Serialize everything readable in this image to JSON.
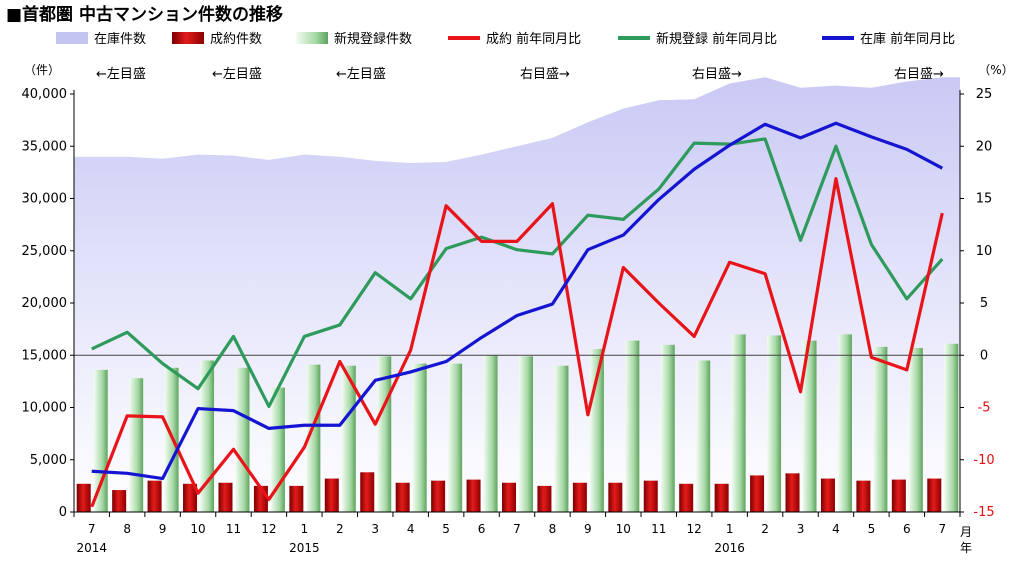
{
  "chart_data": {
    "type": "bar-line-area",
    "title": "■首都圏 中古マンション件数の推移",
    "left_axis_unit": "（件）",
    "right_axis_unit": "（%）",
    "left_ylim": [
      0,
      40000
    ],
    "left_ticks": [
      "0",
      "5,000",
      "10,000",
      "15,000",
      "20,000",
      "25,000",
      "30,000",
      "35,000",
      "40,000"
    ],
    "right_ylim": [
      -15,
      25
    ],
    "right_ticks": [
      "-15",
      "-10",
      "-5",
      "0",
      "5",
      "10",
      "15",
      "20",
      "25"
    ],
    "months": [
      "7",
      "8",
      "9",
      "10",
      "11",
      "12",
      "1",
      "2",
      "3",
      "4",
      "5",
      "6",
      "7",
      "8",
      "9",
      "10",
      "11",
      "12",
      "1",
      "2",
      "3",
      "4",
      "5",
      "6",
      "7"
    ],
    "year_labels": [
      {
        "label": "2014",
        "index": 0
      },
      {
        "label": "2015",
        "index": 6
      },
      {
        "label": "2016",
        "index": 18
      }
    ],
    "x_unit_month": "月",
    "x_unit_year": "年",
    "legend": [
      {
        "name": "在庫件数",
        "sub": "←左目盛",
        "type": "area",
        "color": "#c4c4f2"
      },
      {
        "name": "成約件数",
        "sub": "←左目盛",
        "type": "bar",
        "color": "#c00000"
      },
      {
        "name": "新規登録件数",
        "sub": "←左目盛",
        "type": "bar",
        "color": "#8fcf8f"
      },
      {
        "name": "成約 前年同月比",
        "sub": "右目盛→",
        "type": "line",
        "color": "#e8141a"
      },
      {
        "name": "新規登録 前年同月比",
        "sub": "右目盛→",
        "type": "line",
        "color": "#2e9a5c"
      },
      {
        "name": "在庫 前年同月比",
        "sub": "右目盛→",
        "type": "line",
        "color": "#1414d2"
      }
    ],
    "series": [
      {
        "name": "在庫件数",
        "axis": "left",
        "values": [
          34000,
          34000,
          33800,
          34200,
          34100,
          33700,
          34200,
          34000,
          33600,
          33400,
          33500,
          34200,
          35000,
          35800,
          37300,
          38600,
          39400,
          39500,
          41000,
          41600,
          40600,
          40800,
          40600,
          41200,
          41600
        ]
      },
      {
        "name": "成約件数",
        "axis": "left",
        "values": [
          2700,
          2100,
          3000,
          2700,
          2800,
          2500,
          2500,
          3200,
          3800,
          2800,
          3000,
          3100,
          2800,
          2500,
          2800,
          2800,
          3000,
          2700,
          2700,
          3500,
          3700,
          3200,
          3000,
          3100,
          3200
        ]
      },
      {
        "name": "新規登録件数",
        "axis": "left",
        "values": [
          13600,
          12800,
          13800,
          14500,
          13800,
          11900,
          14100,
          14000,
          14900,
          14200,
          14200,
          15000,
          14900,
          14000,
          15600,
          16400,
          16000,
          14500,
          17000,
          16900,
          16400,
          17000,
          15800,
          15700,
          16100
        ]
      },
      {
        "name": "成約 前年同月比",
        "axis": "right",
        "values": [
          -14.5,
          -5.8,
          -5.9,
          -13.2,
          -9.0,
          -13.8,
          -8.8,
          -0.6,
          -6.6,
          0.5,
          14.3,
          10.9,
          10.9,
          14.5,
          -5.7,
          8.4,
          5.0,
          1.8,
          8.9,
          7.8,
          -3.5,
          16.9,
          -0.2,
          -1.4,
          13.6
        ]
      },
      {
        "name": "新規登録 前年同月比",
        "axis": "right",
        "values": [
          0.6,
          2.2,
          -0.8,
          -3.2,
          1.8,
          -4.9,
          1.8,
          2.9,
          7.9,
          5.4,
          10.2,
          11.3,
          10.1,
          9.7,
          13.4,
          13.0,
          15.9,
          20.3,
          20.2,
          20.7,
          11.0,
          20.0,
          10.6,
          5.4,
          9.2
        ]
      },
      {
        "name": "在庫 前年同月比",
        "axis": "right",
        "values": [
          -11.1,
          -11.3,
          -11.8,
          -5.1,
          -5.3,
          -7.0,
          -6.7,
          -6.7,
          -2.4,
          -1.6,
          -0.6,
          1.7,
          3.8,
          4.9,
          10.1,
          11.5,
          14.9,
          17.8,
          20.1,
          22.1,
          20.8,
          22.2,
          20.9,
          19.7,
          17.9
        ]
      }
    ]
  }
}
